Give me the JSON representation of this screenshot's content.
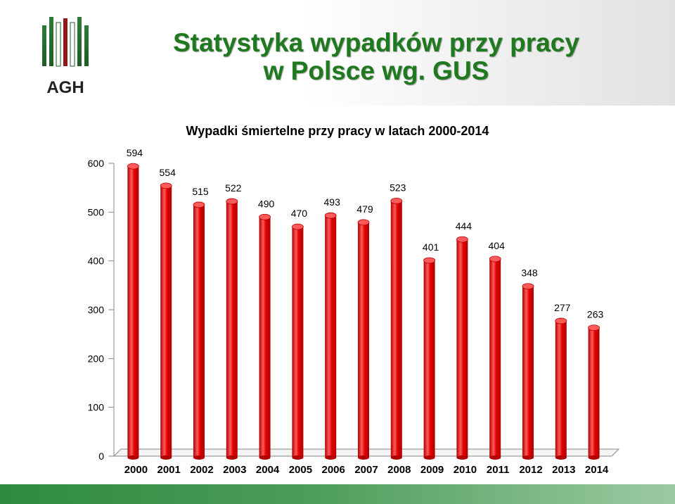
{
  "header": {
    "logo_text": "AGH",
    "title_line1": "Statystyka wypadków przy pracy",
    "title_line2": "w Polsce wg. GUS"
  },
  "colors": {
    "title": "#1f7a1f",
    "bar": "#e00000",
    "bar_dark": "#b00000",
    "bar_light": "#ff5a5a",
    "band": "#2e8b3d"
  },
  "chart_data": {
    "type": "bar",
    "title": "Wypadki śmiertelne przy pracy w latach  2000-2014",
    "categories": [
      "2000",
      "2001",
      "2002",
      "2003",
      "2004",
      "2005",
      "2006",
      "2007",
      "2008",
      "2009",
      "2010",
      "2011",
      "2012",
      "2013",
      "2014"
    ],
    "values": [
      594,
      554,
      515,
      522,
      490,
      470,
      493,
      479,
      523,
      401,
      444,
      404,
      348,
      277,
      263
    ],
    "ylim": [
      0,
      600
    ],
    "yticks": [
      0,
      100,
      200,
      300,
      400,
      500,
      600
    ],
    "data_labels": true,
    "grid": false,
    "legend": "none",
    "style": "3d-cylinder"
  }
}
